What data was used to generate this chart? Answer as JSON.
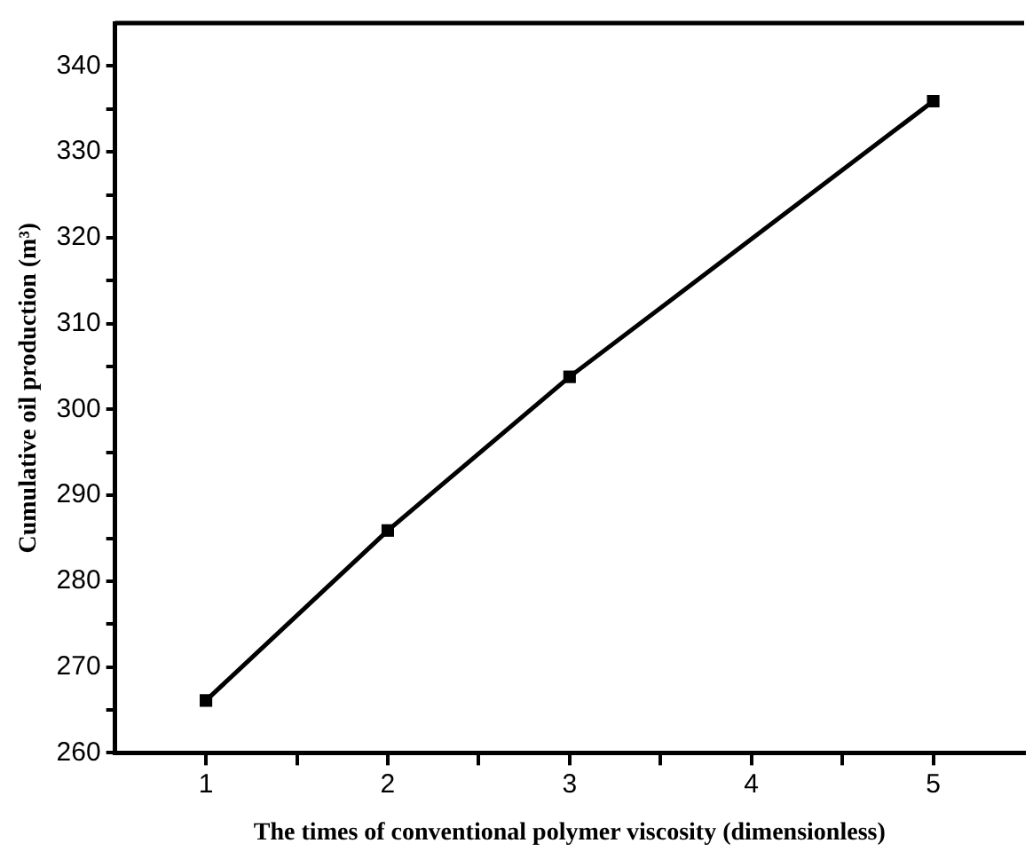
{
  "chart_data": {
    "type": "line",
    "xlabel": "The times of conventional polymer viscosity (dimensionless)",
    "ylabel": "Cumulative oil production (m³)",
    "x": [
      1,
      2,
      3,
      5
    ],
    "series": [
      {
        "color": "#000000",
        "values": [
          266.1,
          285.9,
          303.8,
          335.9
        ]
      }
    ],
    "xlim": [
      0.5,
      5.5
    ],
    "xticks": [
      1,
      {
        "value": 1.5,
        "label": null
      },
      2,
      {
        "value": 2.5,
        "label": null
      },
      3,
      {
        "value": 3.5,
        "label": null
      },
      4,
      {
        "value": 4.5,
        "label": null
      },
      5
    ],
    "ylim": [
      260,
      345
    ],
    "yticks": [
      260,
      {
        "value": 265,
        "label": null
      },
      270,
      {
        "value": 275,
        "label": null
      },
      280,
      {
        "value": 285,
        "label": null
      },
      290,
      {
        "value": 295,
        "label": null
      },
      300,
      {
        "value": 305,
        "label": null
      },
      310,
      {
        "value": 315,
        "label": null
      },
      320,
      {
        "value": 325,
        "label": null
      },
      330,
      {
        "value": 335,
        "label": null
      },
      340
    ],
    "grid": false,
    "legend": false,
    "marker": "square",
    "line_style": "solid"
  }
}
